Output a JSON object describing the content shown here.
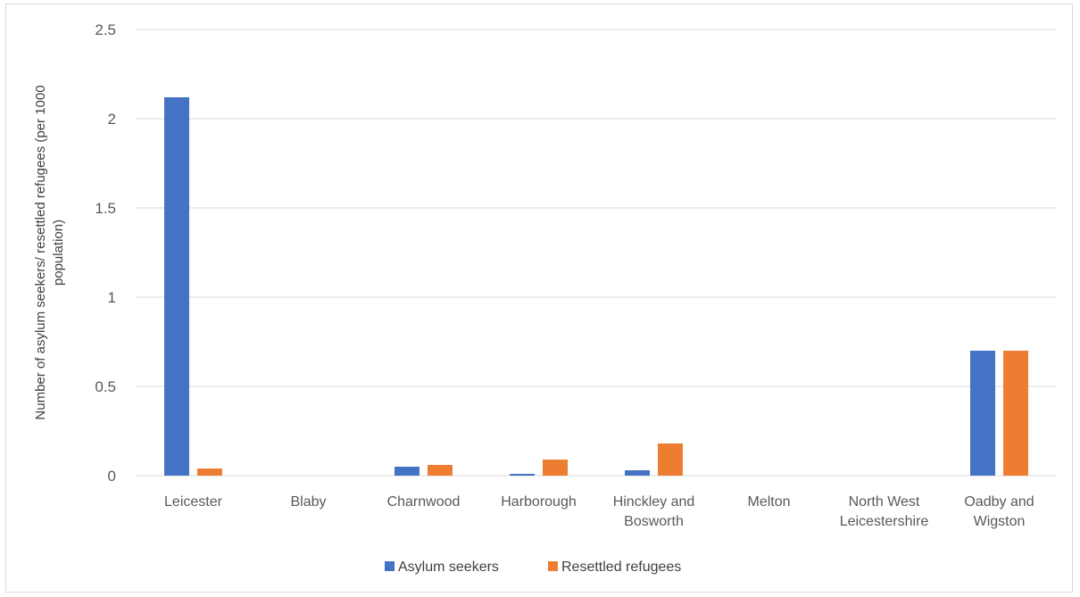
{
  "chart_data": {
    "type": "bar",
    "title": "",
    "xlabel": "",
    "ylabel": "Number of asylum seekers/ resettled refugees (per 1000 population)",
    "ylabel_lines": [
      "Number of asylum seekers/ resettled refugees (per 1000",
      "population)"
    ],
    "ylim": [
      0,
      2.5
    ],
    "yticks": [
      0,
      0.5,
      1,
      1.5,
      2,
      2.5
    ],
    "ytick_labels": [
      "0",
      "0.5",
      "1",
      "1.5",
      "2",
      "2.5"
    ],
    "grid": true,
    "legend_position": "bottom",
    "categories": [
      [
        "Leicester"
      ],
      [
        "Blaby"
      ],
      [
        "Charnwood"
      ],
      [
        "Harborough"
      ],
      [
        "Hinckley and",
        "Bosworth"
      ],
      [
        "Melton"
      ],
      [
        "North West",
        "Leicestershire"
      ],
      [
        "Oadby and",
        "Wigston"
      ]
    ],
    "series": [
      {
        "name": "Asylum seekers",
        "color": "#4472C4",
        "values": [
          2.12,
          0,
          0.05,
          0.01,
          0.03,
          0,
          0,
          0.7
        ]
      },
      {
        "name": "Resettled refugees",
        "color": "#ED7D31",
        "values": [
          0.04,
          0,
          0.06,
          0.09,
          0.18,
          0,
          0,
          0.7
        ]
      }
    ],
    "colors": {
      "grid": "#d9d9d9",
      "axis": "#d9d9d9"
    }
  }
}
